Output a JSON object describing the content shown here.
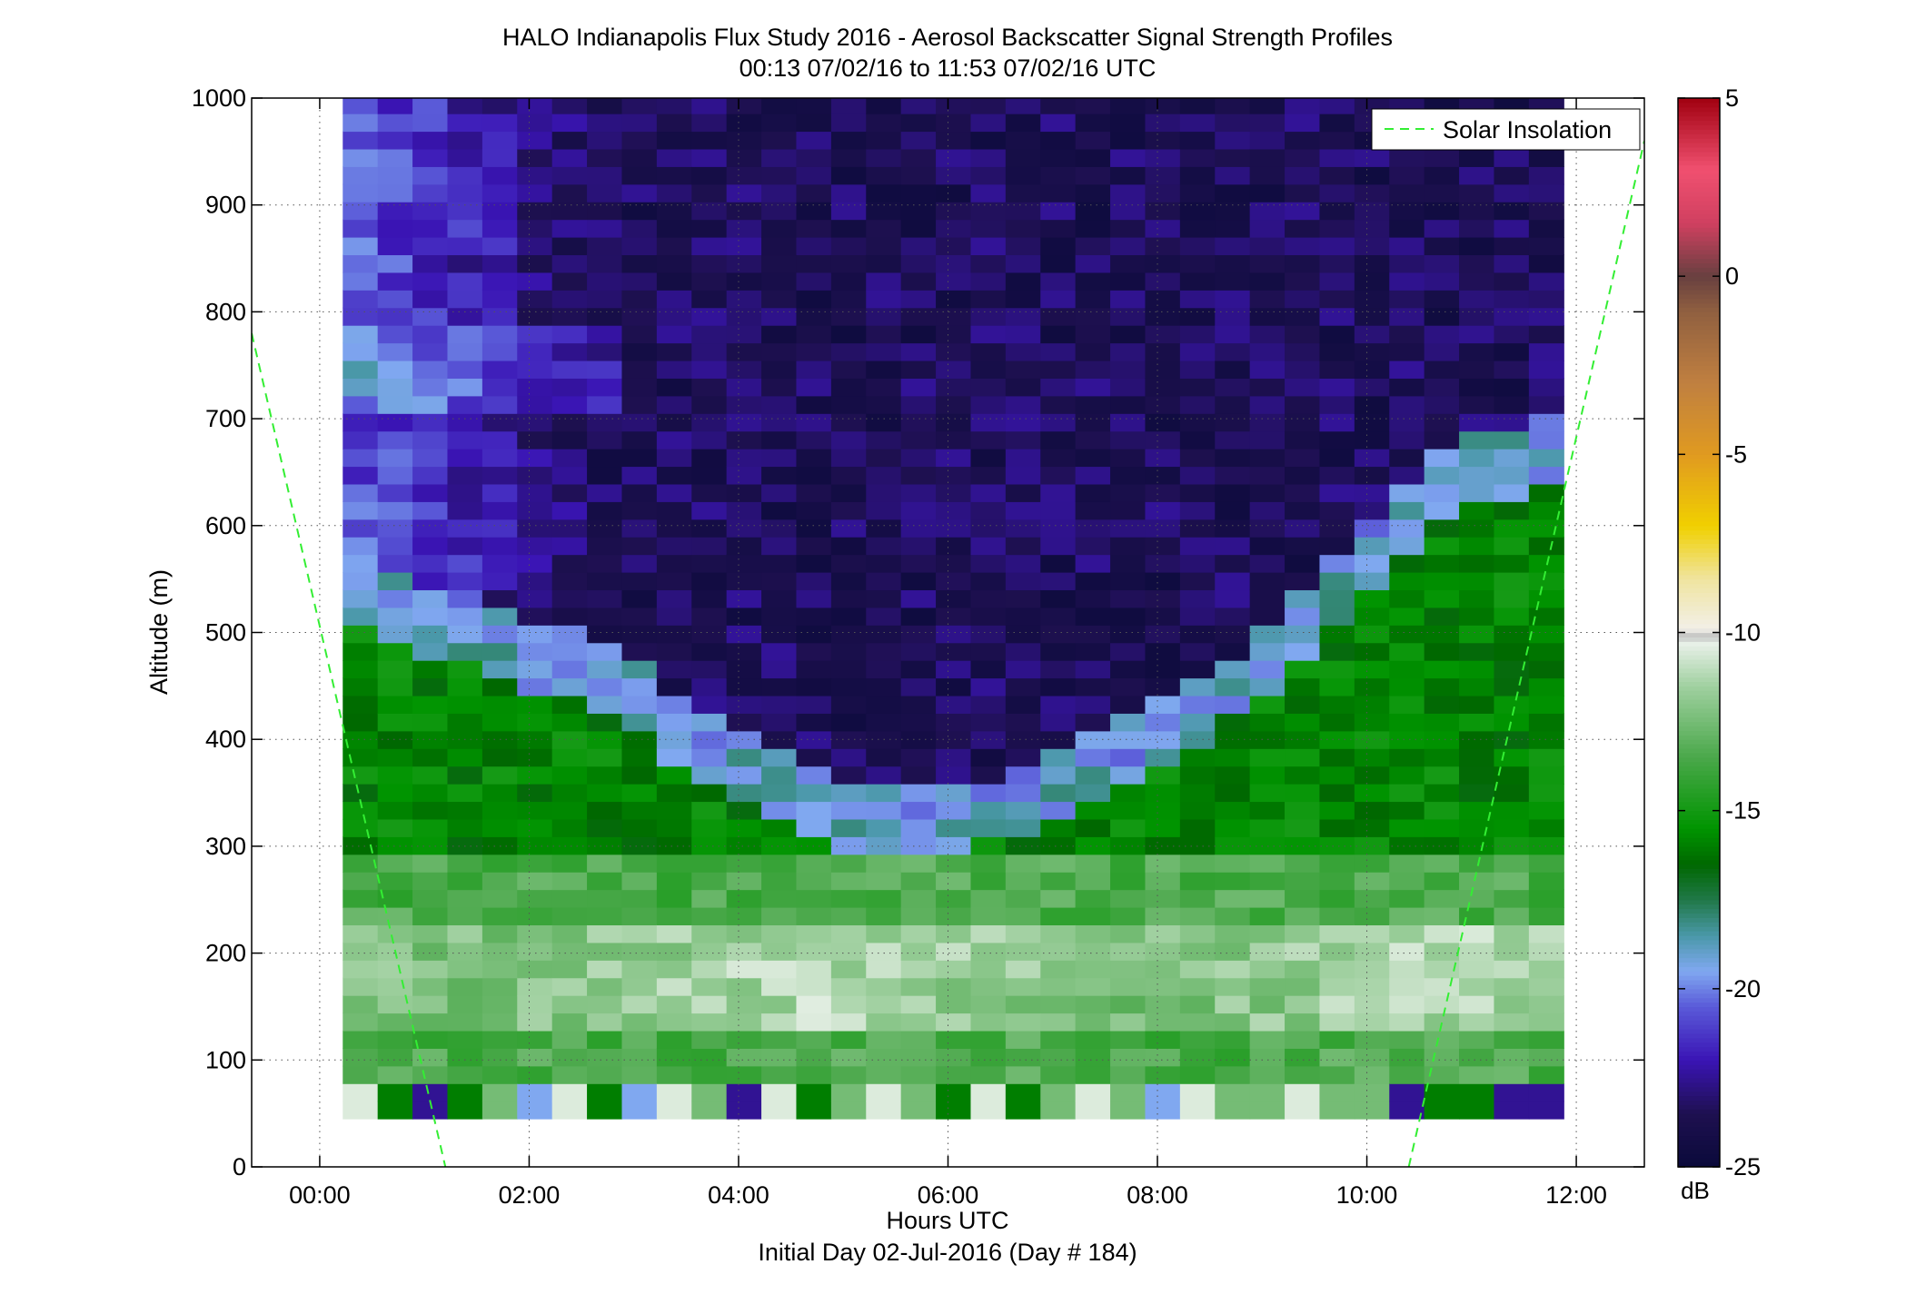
{
  "chart_data": {
    "type": "heatmap",
    "title": "HALO Indianapolis Flux Study 2016 - Aerosol Backscatter Signal Strength Profiles",
    "subtitle": "00:13 07/02/16 to 11:53 07/02/16  UTC",
    "xlabel": "Hours UTC",
    "xlabel2": "Initial Day 02-Jul-2016 (Day # 184)",
    "ylabel": "Altitude (m)",
    "xlim_hours": [
      -0.65,
      12.65
    ],
    "ylim": [
      0,
      1000
    ],
    "x_ticks": [
      {
        "value": 0,
        "label": "00:00"
      },
      {
        "value": 2,
        "label": "02:00"
      },
      {
        "value": 4,
        "label": "04:00"
      },
      {
        "value": 6,
        "label": "06:00"
      },
      {
        "value": 8,
        "label": "08:00"
      },
      {
        "value": 10,
        "label": "10:00"
      },
      {
        "value": 12,
        "label": "12:00"
      }
    ],
    "y_ticks": [
      {
        "value": 0,
        "label": "0"
      },
      {
        "value": 100,
        "label": "100"
      },
      {
        "value": 200,
        "label": "200"
      },
      {
        "value": 300,
        "label": "300"
      },
      {
        "value": 400,
        "label": "400"
      },
      {
        "value": 500,
        "label": "500"
      },
      {
        "value": 600,
        "label": "600"
      },
      {
        "value": 700,
        "label": "700"
      },
      {
        "value": 800,
        "label": "800"
      },
      {
        "value": 900,
        "label": "900"
      },
      {
        "value": 1000,
        "label": "1000"
      }
    ],
    "grid": true,
    "heatmap": {
      "time_start_hours": 0.22,
      "time_end_hours": 11.88,
      "time_bins": 35,
      "altitude_start_m": 45,
      "altitude_end_m": 1000,
      "altitude_bin_m": 16.5,
      "surface_layer_top_m": 62,
      "mixed_layer_top_m": [
        545,
        530,
        510,
        500,
        480,
        460,
        430,
        395,
        370,
        345,
        335,
        330,
        338,
        350,
        385,
        400,
        420,
        460,
        505,
        555,
        600,
        645,
        690
      ],
      "mixed_layer_top_hours": [
        0.22,
        0.75,
        1.25,
        1.75,
        2.25,
        2.75,
        3.25,
        3.75,
        4.25,
        4.75,
        5.25,
        5.75,
        6.25,
        6.75,
        7.25,
        7.75,
        8.25,
        8.75,
        9.25,
        9.75,
        10.25,
        10.75,
        11.88
      ],
      "description_units": "dB"
    },
    "colorbar": {
      "label": "dB",
      "min": -25,
      "max": 5,
      "ticks": [
        {
          "value": 5,
          "label": "5"
        },
        {
          "value": 0,
          "label": "0"
        },
        {
          "value": -5,
          "label": "-5"
        },
        {
          "value": -10,
          "label": "-10"
        },
        {
          "value": -15,
          "label": "-15"
        },
        {
          "value": -20,
          "label": "-20"
        },
        {
          "value": -25,
          "label": "-25"
        }
      ],
      "stops": [
        {
          "value": -25,
          "color": "#0a0a3a"
        },
        {
          "value": -23.5,
          "color": "#1e1050"
        },
        {
          "value": -22,
          "color": "#3a14b4"
        },
        {
          "value": -20.5,
          "color": "#5a5ad8"
        },
        {
          "value": -19.5,
          "color": "#80a8f0"
        },
        {
          "value": -18.5,
          "color": "#4a98a8"
        },
        {
          "value": -17.5,
          "color": "#207848"
        },
        {
          "value": -16.5,
          "color": "#006800"
        },
        {
          "value": -15.5,
          "color": "#009400"
        },
        {
          "value": -13.5,
          "color": "#4aa84a"
        },
        {
          "value": -11.5,
          "color": "#a0d0a0"
        },
        {
          "value": -10.3,
          "color": "#e8f0e8"
        },
        {
          "value": -10.1,
          "color": "#c0c0c0"
        },
        {
          "value": -9.9,
          "color": "#f2f0e8"
        },
        {
          "value": -8.5,
          "color": "#f0e4a0"
        },
        {
          "value": -7,
          "color": "#f0d000"
        },
        {
          "value": -5,
          "color": "#e09a20"
        },
        {
          "value": -3,
          "color": "#c08040"
        },
        {
          "value": -1,
          "color": "#906040"
        },
        {
          "value": 0,
          "color": "#684040"
        },
        {
          "value": 1.5,
          "color": "#d04060"
        },
        {
          "value": 3,
          "color": "#f05070"
        },
        {
          "value": 5,
          "color": "#a00010"
        }
      ]
    },
    "series": [
      {
        "name": "Solar Insolation",
        "color": "#33ee33",
        "style": "dashed",
        "segments": [
          {
            "x": [
              -0.65,
              1.2
            ],
            "y": [
              780,
              0
            ]
          },
          {
            "x": [
              10.4,
              12.65
            ],
            "y": [
              0,
              960
            ]
          }
        ]
      }
    ],
    "legend": {
      "position": "top-right"
    }
  }
}
